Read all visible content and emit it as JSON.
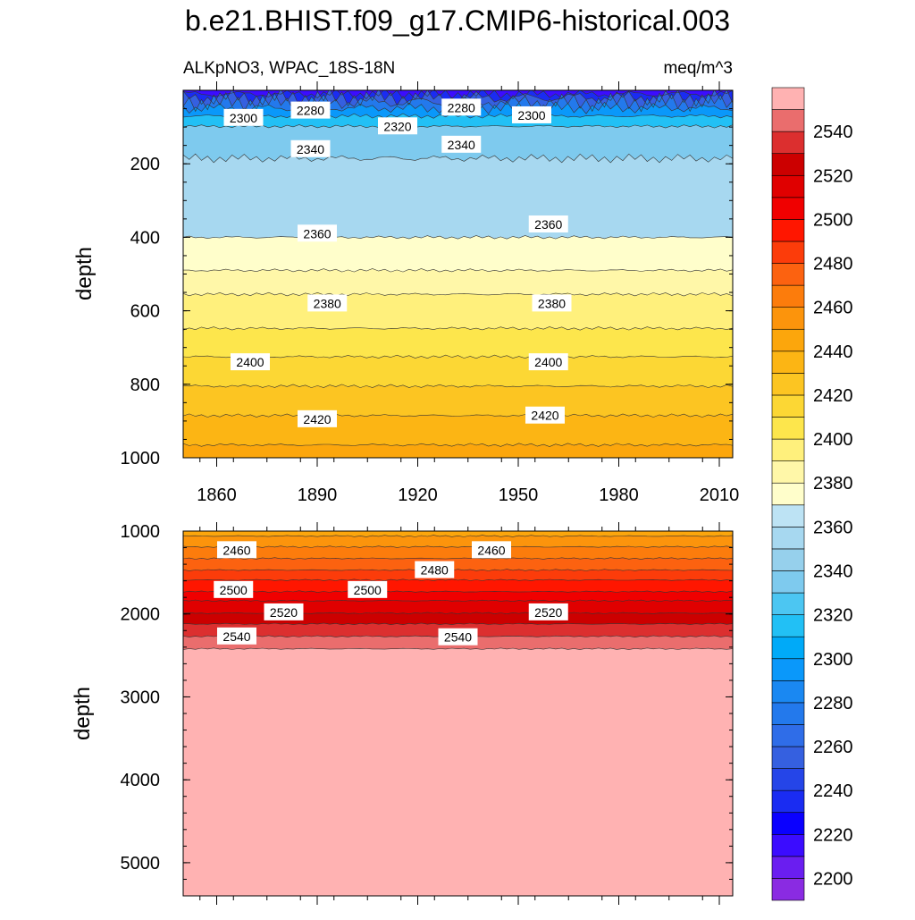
{
  "chart_data": {
    "type": "heatmap",
    "title": "b.e21.BHIST.f09_g17.CMIP6-historical.003",
    "left_subtitle": "ALKpNO3, WPAC_18S-18N",
    "right_subtitle": "meq/m^3",
    "ylabel": "depth",
    "xlabel": "",
    "x_range": [
      1850,
      2014
    ],
    "x_ticks": [
      "1860",
      "1890",
      "1920",
      "1950",
      "1980",
      "2010"
    ],
    "grid": false,
    "legend_placement": "right",
    "panels": [
      {
        "name": "upper",
        "ylim": [
          0,
          1000
        ],
        "y_ticks": [
          "200",
          "400",
          "600",
          "800",
          "1000"
        ],
        "contour_depths": [
          {
            "level": 2220,
            "depth": 10
          },
          {
            "level": 2240,
            "depth": 20
          },
          {
            "level": 2260,
            "depth": 32
          },
          {
            "level": 2280,
            "depth": 48
          },
          {
            "level": 2300,
            "depth": 70
          },
          {
            "level": 2320,
            "depth": 98
          },
          {
            "level": 2340,
            "depth": 185
          },
          {
            "level": 2360,
            "depth": 400
          },
          {
            "level": 2380,
            "depth": 490
          },
          {
            "level": 2390,
            "depth": 555
          },
          {
            "level": 2400,
            "depth": 648
          },
          {
            "level": 2410,
            "depth": 725
          },
          {
            "level": 2420,
            "depth": 805
          },
          {
            "level": 2430,
            "depth": 885
          },
          {
            "level": 2440,
            "depth": 965
          }
        ],
        "contour_labels": [
          {
            "text": "2300",
            "year": 1868,
            "depth": 75
          },
          {
            "text": "2280",
            "year": 1888,
            "depth": 55
          },
          {
            "text": "2280",
            "year": 1933,
            "depth": 47
          },
          {
            "text": "2300",
            "year": 1954,
            "depth": 68
          },
          {
            "text": "2320",
            "year": 1914,
            "depth": 98
          },
          {
            "text": "2340",
            "year": 1888,
            "depth": 160
          },
          {
            "text": "2340",
            "year": 1933,
            "depth": 148
          },
          {
            "text": "2360",
            "year": 1890,
            "depth": 390
          },
          {
            "text": "2360",
            "year": 1959,
            "depth": 365
          },
          {
            "text": "2380",
            "year": 1893,
            "depth": 580
          },
          {
            "text": "2380",
            "year": 1960,
            "depth": 580
          },
          {
            "text": "2400",
            "year": 1870,
            "depth": 740
          },
          {
            "text": "2400",
            "year": 1959,
            "depth": 740
          },
          {
            "text": "2420",
            "year": 1890,
            "depth": 895
          },
          {
            "text": "2420",
            "year": 1958,
            "depth": 885
          }
        ]
      },
      {
        "name": "lower",
        "ylim": [
          1000,
          5400
        ],
        "y_ticks": [
          "1000",
          "2000",
          "3000",
          "4000",
          "5000"
        ],
        "contour_depths": [
          {
            "level": 2450,
            "depth": 1060
          },
          {
            "level": 2460,
            "depth": 1190
          },
          {
            "level": 2470,
            "depth": 1330
          },
          {
            "level": 2480,
            "depth": 1470
          },
          {
            "level": 2490,
            "depth": 1590
          },
          {
            "level": 2500,
            "depth": 1730
          },
          {
            "level": 2510,
            "depth": 1840
          },
          {
            "level": 2520,
            "depth": 1990
          },
          {
            "level": 2530,
            "depth": 2120
          },
          {
            "level": 2540,
            "depth": 2270
          },
          {
            "level": 2550,
            "depth": 2420
          }
        ],
        "contour_labels": [
          {
            "text": "2460",
            "year": 1866,
            "depth": 1230
          },
          {
            "text": "2460",
            "year": 1942,
            "depth": 1230
          },
          {
            "text": "2480",
            "year": 1925,
            "depth": 1470
          },
          {
            "text": "2500",
            "year": 1865,
            "depth": 1710
          },
          {
            "text": "2500",
            "year": 1905,
            "depth": 1710
          },
          {
            "text": "2520",
            "year": 1880,
            "depth": 1980
          },
          {
            "text": "2520",
            "year": 1959,
            "depth": 1980
          },
          {
            "text": "2540",
            "year": 1866,
            "depth": 2270
          },
          {
            "text": "2540",
            "year": 1932,
            "depth": 2280
          }
        ]
      }
    ],
    "colorbar": {
      "levels": [
        2200,
        2210,
        2220,
        2230,
        2240,
        2250,
        2260,
        2270,
        2280,
        2290,
        2300,
        2310,
        2320,
        2330,
        2340,
        2350,
        2360,
        2370,
        2380,
        2390,
        2400,
        2410,
        2420,
        2430,
        2440,
        2450,
        2460,
        2470,
        2480,
        2490,
        2500,
        2510,
        2520,
        2530,
        2540,
        2550
      ],
      "labels": [
        "2200",
        "2220",
        "2240",
        "2260",
        "2280",
        "2300",
        "2320",
        "2340",
        "2360",
        "2380",
        "2400",
        "2420",
        "2440",
        "2460",
        "2480",
        "2500",
        "2520",
        "2540"
      ],
      "colors": [
        "#8a2be2",
        "#6a1ef0",
        "#3b0cff",
        "#0a00ff",
        "#1a2cf2",
        "#2545e8",
        "#3560e0",
        "#2f6de8",
        "#2379ec",
        "#1a88f2",
        "#0a98fa",
        "#00aaf8",
        "#22c0f5",
        "#4cc6f2",
        "#7ecaee",
        "#96d0ec",
        "#a7d8f0",
        "#bde3f4",
        "#fffecb",
        "#fff7a8",
        "#fff07c",
        "#fde64c",
        "#fcd734",
        "#fcc522",
        "#fcb514",
        "#fca60c",
        "#fc940c",
        "#fc7c0c",
        "#fc6210",
        "#fc3c0a",
        "#ff1600",
        "#f00000",
        "#e00000",
        "#cc0000",
        "#dc2f2f",
        "#ea6d6d",
        "#ffb2b2"
      ]
    }
  }
}
